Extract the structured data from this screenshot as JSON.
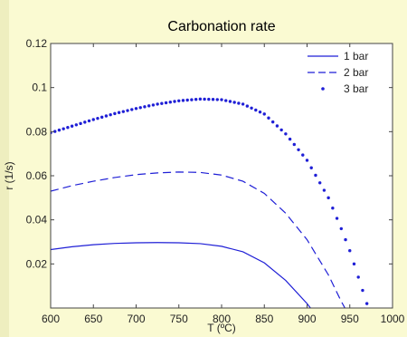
{
  "chart_data": {
    "type": "line",
    "title": "Carbonation rate",
    "xlabel": "T (ºC)",
    "ylabel": "r (1/s)",
    "xlim": [
      600,
      1000
    ],
    "ylim": [
      0,
      0.12
    ],
    "xticks": [
      "600",
      "650",
      "700",
      "750",
      "800",
      "850",
      "900",
      "950",
      "1000"
    ],
    "yticks": [
      "0.02",
      "0.04",
      "0.06",
      "0.08",
      "0.1",
      "0.12"
    ],
    "grid": false,
    "legend_position": "top-right",
    "series": [
      {
        "name": "1 bar",
        "style": "solid",
        "x": [
          600,
          625,
          650,
          675,
          700,
          725,
          750,
          775,
          800,
          825,
          850,
          875,
          900,
          910
        ],
        "y": [
          0.0265,
          0.0278,
          0.0287,
          0.0293,
          0.0296,
          0.0297,
          0.0296,
          0.0292,
          0.028,
          0.0255,
          0.0205,
          0.0125,
          0.002,
          -0.003
        ]
      },
      {
        "name": "2 bar",
        "style": "dashed",
        "x": [
          600,
          625,
          650,
          675,
          700,
          725,
          750,
          775,
          800,
          825,
          850,
          875,
          900,
          925,
          940,
          950
        ],
        "y": [
          0.053,
          0.0555,
          0.0575,
          0.0592,
          0.0605,
          0.0613,
          0.0617,
          0.0615,
          0.0603,
          0.0575,
          0.052,
          0.043,
          0.031,
          0.015,
          0.003,
          -0.004
        ]
      },
      {
        "name": "3 bar",
        "style": "dotted",
        "x": [
          600,
          625,
          650,
          675,
          700,
          725,
          750,
          775,
          800,
          825,
          850,
          875,
          900,
          925,
          940,
          950,
          960,
          970
        ],
        "y": [
          0.0795,
          0.0825,
          0.0855,
          0.0882,
          0.0905,
          0.0925,
          0.094,
          0.0948,
          0.0945,
          0.0925,
          0.088,
          0.079,
          0.067,
          0.05,
          0.036,
          0.026,
          0.014,
          0.002
        ]
      }
    ]
  },
  "colors": {
    "line": "#1f1fd6",
    "axes": "#444444"
  }
}
